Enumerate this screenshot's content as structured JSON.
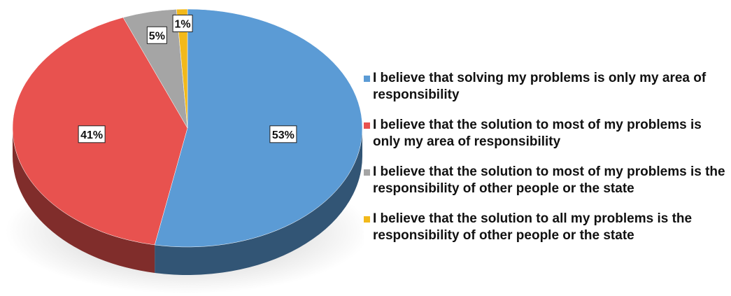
{
  "chart_data": {
    "type": "pie",
    "title": "",
    "slices": [
      {
        "label": "I believe that solving my problems is only my area of responsibility",
        "value": 53,
        "display": "53%",
        "color": "#5b9bd5"
      },
      {
        "label": "I believe that the solution to most of my problems is only my area of responsibility",
        "value": 41,
        "display": "41%",
        "color": "#e8524f"
      },
      {
        "label": "I believe that the solution to most of my problems is the responsibility of other people or the state",
        "value": 5,
        "display": "5%",
        "color": "#a5a5a5"
      },
      {
        "label": "I believe that the solution to all my problems is the responsibility of other people or the state",
        "value": 1,
        "display": "1%",
        "color": "#f2b91b"
      }
    ],
    "legend_position": "right",
    "style": "3d"
  }
}
